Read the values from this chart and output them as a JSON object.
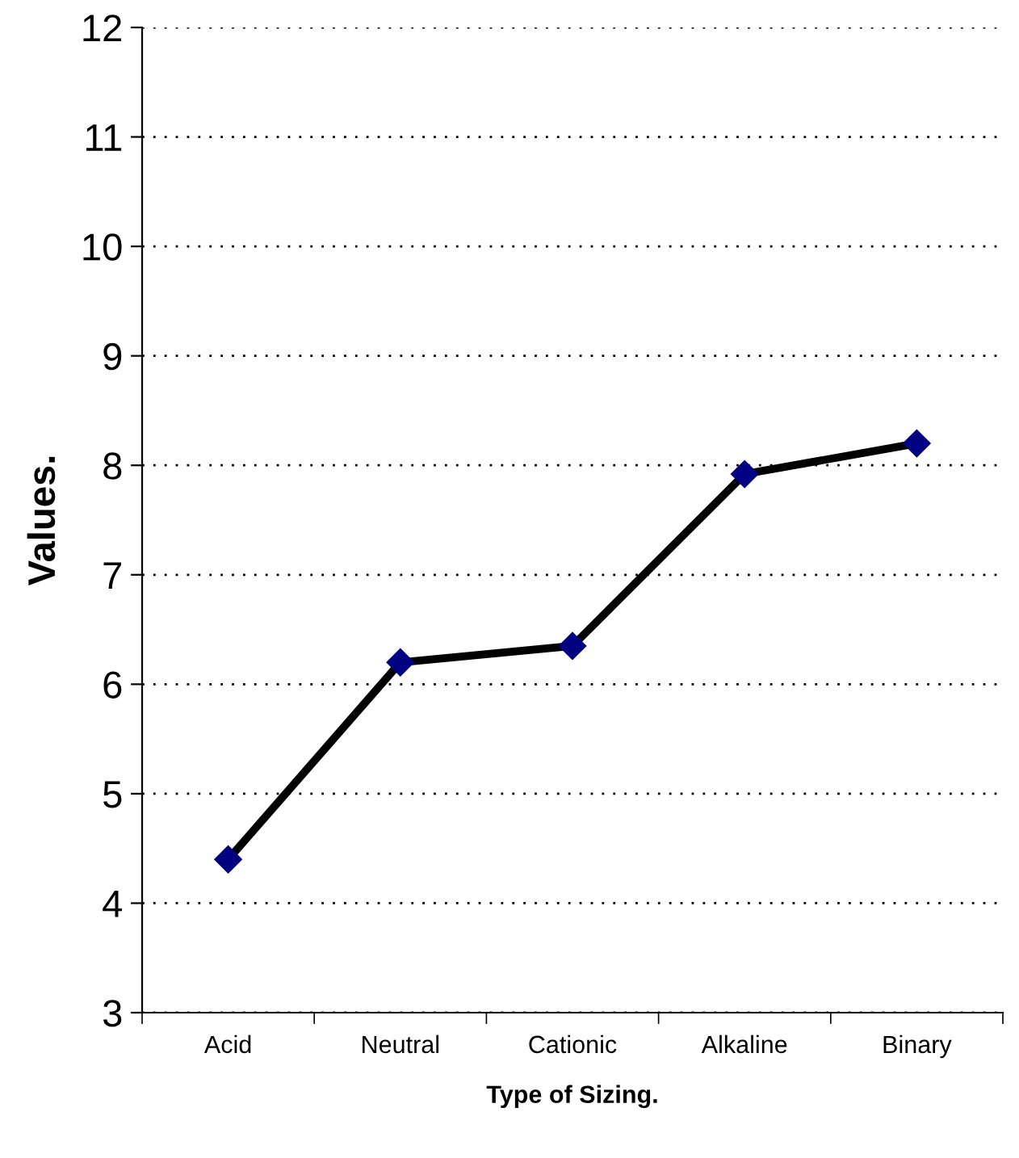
{
  "chart_data": {
    "type": "line",
    "xlabel": "Type of Sizing.",
    "ylabel": "Values.",
    "categories": [
      "Acid",
      "Neutral",
      "Cationic",
      "Alkaline",
      "Binary"
    ],
    "series": [
      {
        "color": "#000000",
        "values": [
          4.4,
          6.2,
          6.35,
          7.92,
          8.2
        ]
      }
    ],
    "marker": "diamond",
    "ylim": [
      3,
      12
    ],
    "yticks": [
      3,
      4,
      5,
      6,
      7,
      8,
      9,
      10,
      11,
      12
    ],
    "grid": "y",
    "line_style": "solid"
  }
}
